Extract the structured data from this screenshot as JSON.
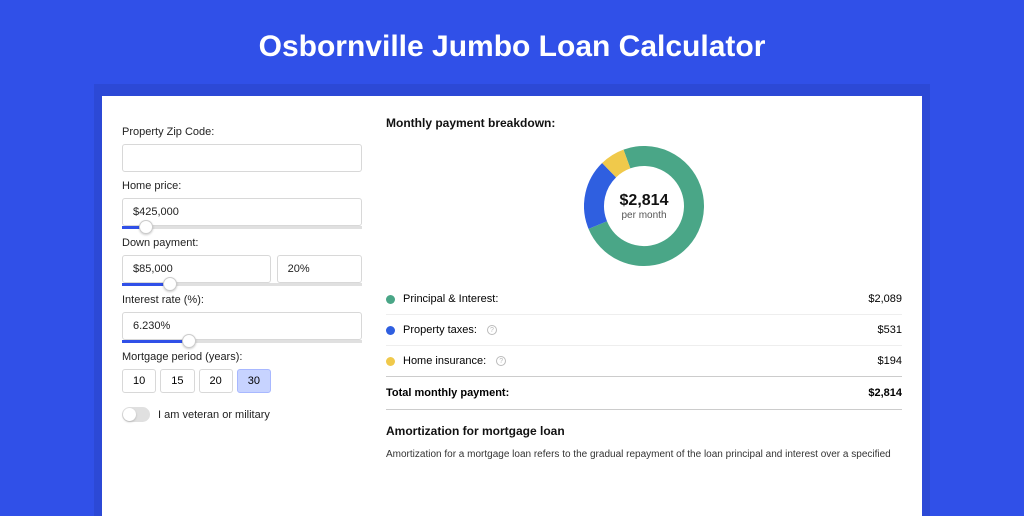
{
  "page": {
    "title": "Osbornville Jumbo Loan Calculator",
    "background_color": "#3050e8",
    "shadow_color": "#2c49d6",
    "card_bg": "#ffffff"
  },
  "form": {
    "zip_label": "Property Zip Code:",
    "zip_value": "",
    "home_price_label": "Home price:",
    "home_price_value": "$425,000",
    "home_price_slider_pct": 10,
    "down_payment_label": "Down payment:",
    "down_payment_value": "$85,000",
    "down_payment_pct": "20%",
    "down_payment_slider_pct": 20,
    "interest_label": "Interest rate (%):",
    "interest_value": "6.230%",
    "interest_slider_pct": 28,
    "period_label": "Mortgage period (years):",
    "periods": [
      "10",
      "15",
      "20",
      "30"
    ],
    "period_active_index": 3,
    "veteran_label": "I am veteran or military"
  },
  "breakdown": {
    "title": "Monthly payment breakdown:",
    "total_amount": "$2,814",
    "total_sub": "per month",
    "donut": {
      "radius": 50,
      "stroke": 20,
      "segments": [
        {
          "label": "Principal & Interest",
          "value": 2089,
          "color": "#4aa687",
          "pct": 74.2
        },
        {
          "label": "Property taxes",
          "value": 531,
          "color": "#2f5fe0",
          "pct": 18.9
        },
        {
          "label": "Home insurance",
          "value": 194,
          "color": "#f0c94b",
          "pct": 6.9
        }
      ]
    },
    "rows": [
      {
        "dot": "#4aa687",
        "label": "Principal & Interest:",
        "info": false,
        "amount": "$2,089"
      },
      {
        "dot": "#2f5fe0",
        "label": "Property taxes:",
        "info": true,
        "amount": "$531"
      },
      {
        "dot": "#f0c94b",
        "label": "Home insurance:",
        "info": true,
        "amount": "$194"
      }
    ],
    "total_label": "Total monthly payment:",
    "total_value": "$2,814"
  },
  "amort": {
    "title": "Amortization for mortgage loan",
    "text": "Amortization for a mortgage loan refers to the gradual repayment of the loan principal and interest over a specified"
  }
}
